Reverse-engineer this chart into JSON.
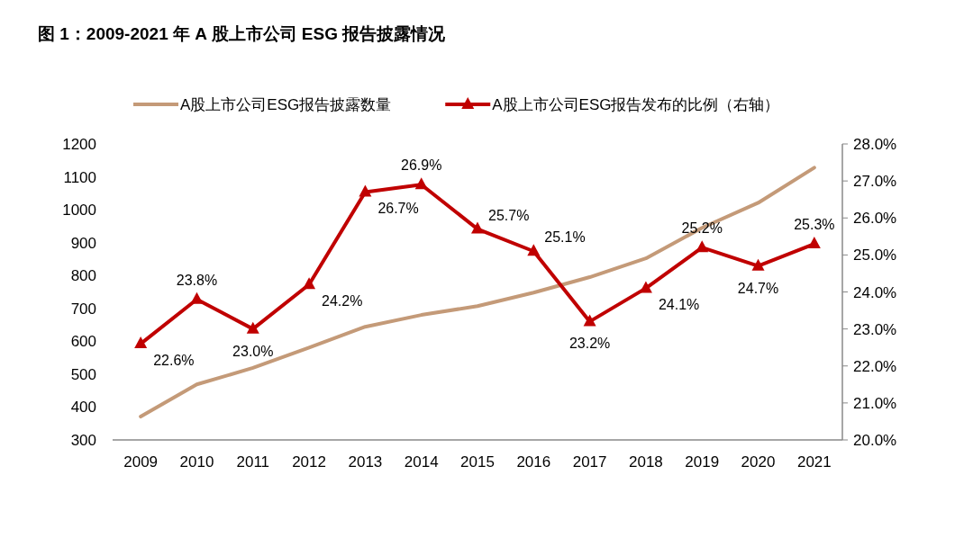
{
  "chart_data": {
    "type": "line",
    "title": "图 1：2009-2021 年 A 股上市公司 ESG 报告披露情况",
    "categories": [
      "2009",
      "2010",
      "2011",
      "2012",
      "2013",
      "2014",
      "2015",
      "2016",
      "2017",
      "2018",
      "2019",
      "2020",
      "2021"
    ],
    "series": [
      {
        "name": "A股上市公司ESG报告披露数量",
        "color": "#c49a78",
        "marker": "none",
        "values": [
          371,
          469,
          519,
          581,
          644,
          680,
          707,
          748,
          795,
          852,
          945,
          1021,
          1128
        ]
      },
      {
        "name": "A股上市公司ESG报告发布的比例（右轴）",
        "color": "#c00000",
        "axis": "y2",
        "marker": "triangle",
        "values": [
          22.6,
          23.8,
          23.0,
          24.2,
          26.7,
          26.9,
          25.7,
          25.1,
          23.2,
          24.1,
          25.2,
          24.7,
          25.3
        ],
        "value_labels": [
          "22.6%",
          "23.8%",
          "23.0%",
          "24.2%",
          "26.7%",
          "26.9%",
          "25.7%",
          "25.1%",
          "23.2%",
          "24.1%",
          "25.2%",
          "24.7%",
          "25.3%"
        ]
      }
    ],
    "ylim": [
      300,
      1200
    ],
    "yticks": [
      300,
      400,
      500,
      600,
      700,
      800,
      900,
      1000,
      1100,
      1200
    ],
    "y2lim": [
      20,
      28
    ],
    "y2ticks": [
      {
        "value": 20,
        "label": "20.0%"
      },
      {
        "value": 21,
        "label": "21.0%"
      },
      {
        "value": 22,
        "label": "22.0%"
      },
      {
        "value": 23,
        "label": "23.0%"
      },
      {
        "value": 24,
        "label": "24.0%"
      },
      {
        "value": 25,
        "label": "25.0%"
      },
      {
        "value": 26,
        "label": "26.0%"
      },
      {
        "value": 27,
        "label": "27.0%"
      },
      {
        "value": 28,
        "label": "28.0%"
      }
    ],
    "grid": false,
    "legend": "top"
  }
}
